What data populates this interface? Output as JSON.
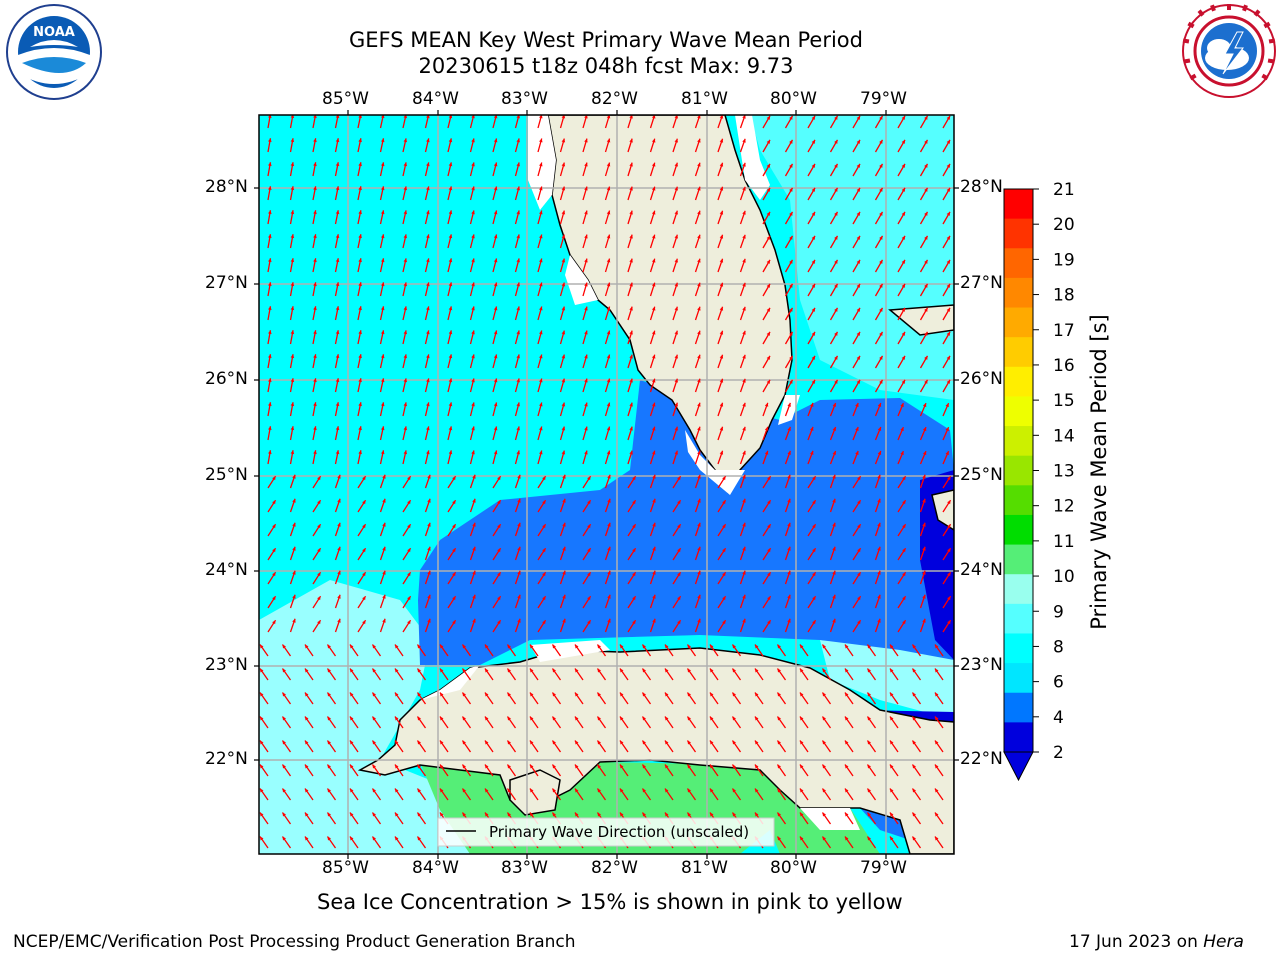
{
  "header": {
    "title_line1": "GEFS MEAN Key West Primary Wave Mean Period",
    "title_line2": "20230615 t18z 048h fcst   Max: 9.73"
  },
  "map": {
    "lon_labels": [
      "85°W",
      "84°W",
      "83°W",
      "82°W",
      "81°W",
      "80°W",
      "79°W"
    ],
    "lat_labels": [
      "28°N",
      "27°N",
      "26°N",
      "25°N",
      "24°N",
      "23°N",
      "22°N"
    ],
    "legend_label": "Primary Wave Direction (unscaled)"
  },
  "colorbar": {
    "label": "Primary Wave Mean Period [s]",
    "ticks": [
      "21",
      "20",
      "19",
      "18",
      "17",
      "16",
      "15",
      "14",
      "13",
      "12",
      "11",
      "10",
      "9",
      "8",
      "6",
      "4",
      "2"
    ],
    "colors": [
      "#ff0000",
      "#ff3300",
      "#ff6600",
      "#ff8800",
      "#ffaa00",
      "#ffcc00",
      "#ffee00",
      "#eeff00",
      "#ccf000",
      "#99e600",
      "#55dd00",
      "#00dd00",
      "#55ee77",
      "#99ffee",
      "#55ffff",
      "#00ffff",
      "#00e6ff",
      "#0077ff",
      "#0000dd"
    ]
  },
  "logos": {
    "noaa_text": "NOAA"
  },
  "caption": "Sea Ice Concentration > 15% is shown in pink to yellow",
  "footer": {
    "left": "NCEP/EMC/Verification Post Processing Product Generation Branch",
    "date_prefix": "17 Jun 2023 on ",
    "machine": "Hera"
  }
}
